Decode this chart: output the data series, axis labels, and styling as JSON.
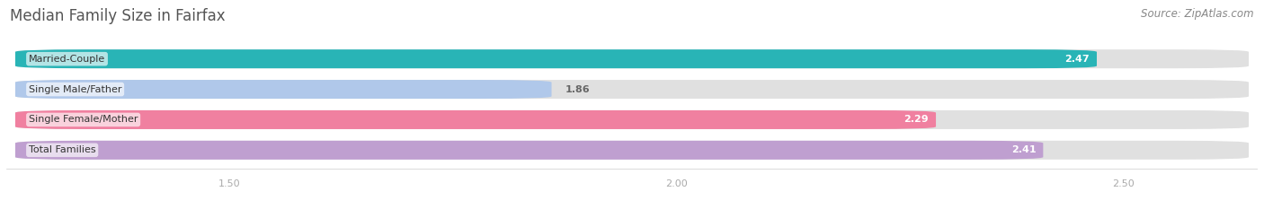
{
  "title": "Median Family Size in Fairfax",
  "source": "Source: ZipAtlas.com",
  "categories": [
    "Married-Couple",
    "Single Male/Father",
    "Single Female/Mother",
    "Total Families"
  ],
  "values": [
    2.47,
    1.86,
    2.29,
    2.41
  ],
  "bar_colors": [
    "#29b4b6",
    "#b0c8ea",
    "#f080a0",
    "#bf9fd0"
  ],
  "label_colors": [
    "white",
    "#666666",
    "white",
    "white"
  ],
  "xlim_min": 1.25,
  "xlim_max": 2.65,
  "xticks": [
    1.5,
    2.0,
    2.5
  ],
  "xtick_labels": [
    "1.50",
    "2.00",
    "2.50"
  ],
  "bar_bg_color": "#e0e0e0",
  "title_fontsize": 12,
  "source_fontsize": 8.5,
  "label_fontsize": 8,
  "value_fontsize": 8,
  "tick_fontsize": 8,
  "bar_height": 0.62,
  "title_color": "#555555",
  "source_color": "#888888",
  "tick_color": "#aaaaaa"
}
